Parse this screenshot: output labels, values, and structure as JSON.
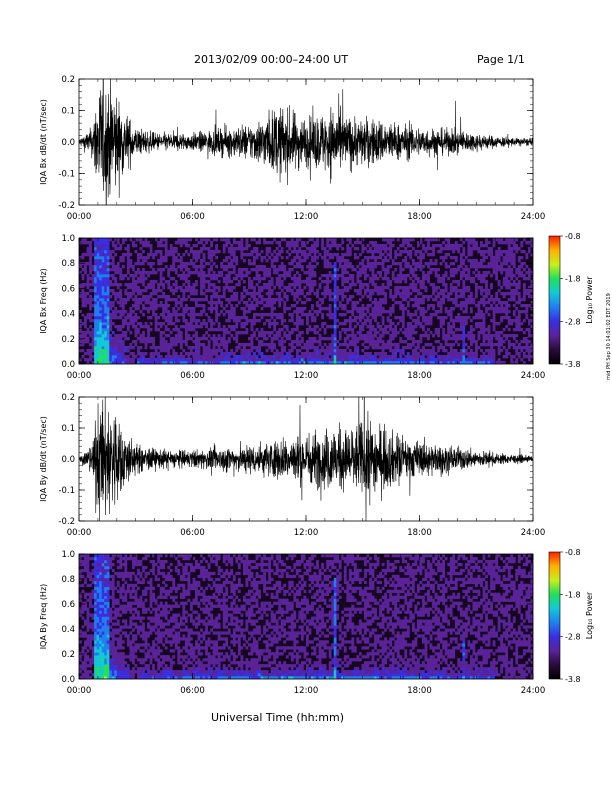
{
  "header": {
    "title": "2013/02/09   00:00–24:00 UT",
    "page": "Page 1/1"
  },
  "footer": {
    "xlabel": "Universal Time (hh:mm)",
    "stamp": "mid PH Sep 30 14:01:02 EDT 2019"
  },
  "colors": {
    "spectrum": [
      "#000000",
      "#2a0a3e",
      "#5a2398",
      "#3a2ee0",
      "#1f7ff0",
      "#14c8d8",
      "#22e05a",
      "#c8ee1a",
      "#ffb000",
      "#ff2000"
    ]
  },
  "chart_data": [
    {
      "type": "line",
      "ylabel": "IQA Bx dB/dt (nT/sec)",
      "xlim": [
        0,
        24
      ],
      "ylim": [
        -0.2,
        0.2
      ],
      "x_ticks": [
        "00:00",
        "06:00",
        "12:00",
        "18:00",
        "24:00"
      ],
      "y_ticks": [
        "-0.2",
        "-0.1",
        "0.0",
        "0.1",
        "0.2"
      ],
      "amplitude_envelope": {
        "x": [
          0,
          0.7,
          1.0,
          1.3,
          1.8,
          2.2,
          3.0,
          4.0,
          5.0,
          6.0,
          7.0,
          8.0,
          9.0,
          10.0,
          10.5,
          11.0,
          12.0,
          13.0,
          13.5,
          14.0,
          15.0,
          16.0,
          17.0,
          18.0,
          19.0,
          20.0,
          21.0,
          22.0,
          23.0,
          24.0
        ],
        "y": [
          0.012,
          0.05,
          0.2,
          0.2,
          0.2,
          0.12,
          0.05,
          0.03,
          0.03,
          0.03,
          0.04,
          0.05,
          0.06,
          0.09,
          0.12,
          0.11,
          0.08,
          0.1,
          0.13,
          0.09,
          0.08,
          0.075,
          0.06,
          0.05,
          0.045,
          0.04,
          0.03,
          0.02,
          0.015,
          0.012
        ]
      }
    },
    {
      "type": "heatmap",
      "ylabel": "IQA Bx Freq (Hz)",
      "xlim": [
        0,
        24
      ],
      "ylim": [
        0.0,
        1.0
      ],
      "x_ticks": [
        "00:00",
        "06:00",
        "12:00",
        "18:00",
        "24:00"
      ],
      "y_ticks": [
        "0.0",
        "0.2",
        "0.4",
        "0.6",
        "0.8",
        "1.0"
      ],
      "colorbar": {
        "label": "Log₁₀ Power",
        "range": [
          -3.8,
          -0.8
        ],
        "ticks": [
          "-0.8",
          "-1.8",
          "-2.8",
          "-3.8"
        ]
      }
    },
    {
      "type": "line",
      "ylabel": "IQA By dB/dt (nT/sec)",
      "xlim": [
        0,
        24
      ],
      "ylim": [
        -0.2,
        0.2
      ],
      "x_ticks": [
        "00:00",
        "06:00",
        "12:00",
        "18:00",
        "24:00"
      ],
      "y_ticks": [
        "-0.2",
        "-0.1",
        "0.0",
        "0.1",
        "0.2"
      ],
      "amplitude_envelope": {
        "x": [
          0,
          0.7,
          1.0,
          1.3,
          1.8,
          2.2,
          3.0,
          4.0,
          5.0,
          6.0,
          7.0,
          8.0,
          9.0,
          10.0,
          11.0,
          12.0,
          13.0,
          13.5,
          14.0,
          15.0,
          15.5,
          16.0,
          17.0,
          18.0,
          19.0,
          20.0,
          21.0,
          22.0,
          23.0,
          24.0
        ],
        "y": [
          0.01,
          0.05,
          0.2,
          0.2,
          0.2,
          0.12,
          0.05,
          0.035,
          0.03,
          0.03,
          0.035,
          0.045,
          0.05,
          0.06,
          0.075,
          0.09,
          0.1,
          0.12,
          0.1,
          0.13,
          0.14,
          0.11,
          0.08,
          0.06,
          0.05,
          0.04,
          0.03,
          0.02,
          0.015,
          0.01
        ]
      }
    },
    {
      "type": "heatmap",
      "ylabel": "IQA By Freq (Hz)",
      "xlim": [
        0,
        24
      ],
      "ylim": [
        0.0,
        1.0
      ],
      "x_ticks": [
        "00:00",
        "06:00",
        "12:00",
        "18:00",
        "24:00"
      ],
      "y_ticks": [
        "0.0",
        "0.2",
        "0.4",
        "0.6",
        "0.8",
        "1.0"
      ],
      "colorbar": {
        "label": "Log₁₀ Power",
        "range": [
          -3.8,
          -0.8
        ],
        "ticks": [
          "-0.8",
          "-1.8",
          "-2.8",
          "-3.8"
        ]
      }
    }
  ]
}
